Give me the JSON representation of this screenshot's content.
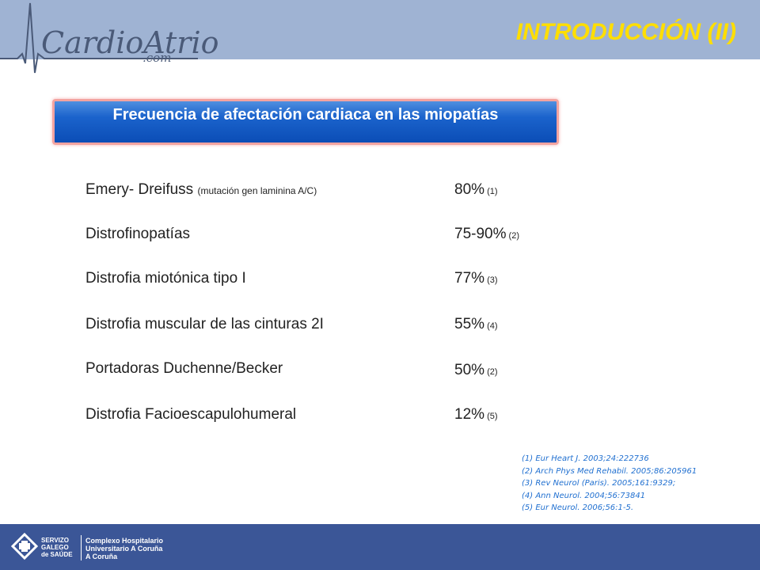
{
  "logo": {
    "text": "CardioAtrio",
    "sub": ".com"
  },
  "slide": {
    "title": "INTRODUCCIÓN (II)",
    "banner": "Frecuencia de afectación cardiaca en las miopatías"
  },
  "rows": [
    {
      "label": "Emery- Dreifuss ",
      "note": "(mutación gen laminina A/C)",
      "value": "80%",
      "ref": " (1)"
    },
    {
      "label": "Distrofinopatías",
      "note": "",
      "value": "75-90%",
      "ref": " (2)"
    },
    {
      "label": "Distrofia miotónica tipo I",
      "note": "",
      "value": "77%",
      "ref": " (3)"
    },
    {
      "label": "Distrofia muscular de las cinturas 2I",
      "note": "",
      "value": "55%",
      "ref": " (4)"
    },
    {
      "label": "Portadoras Duchenne/Becker",
      "note": "",
      "value": "50%",
      "ref": " (2)"
    },
    {
      "label": "Distrofia Facioescapulohumeral",
      "note": "",
      "value": "12%",
      "ref": " (5)"
    }
  ],
  "references": [
    "(1)   Eur Heart J. 2003;24:222736",
    "(2) Arch Phys Med Rehabil. 2005;86:205961",
    "(3) Rev Neurol (Paris). 2005;161:9329;",
    "(4) Ann  Neurol. 2004;56:73841",
    "(5) Eur Neurol. 2006;56:1-5."
  ],
  "footer": {
    "org1": [
      "SERVIZO",
      "GALEGO",
      "de SAÚDE"
    ],
    "org2": [
      "Complexo Hospitalario",
      "Universitario A Coruña",
      "A Coruña"
    ]
  },
  "colors": {
    "header": "#9fb3d3",
    "title": "#ffde00",
    "banner": "#1b63cc",
    "banner_border": "#f3a3a0",
    "references": "#1f6fd0",
    "footer": "#3b5697"
  }
}
